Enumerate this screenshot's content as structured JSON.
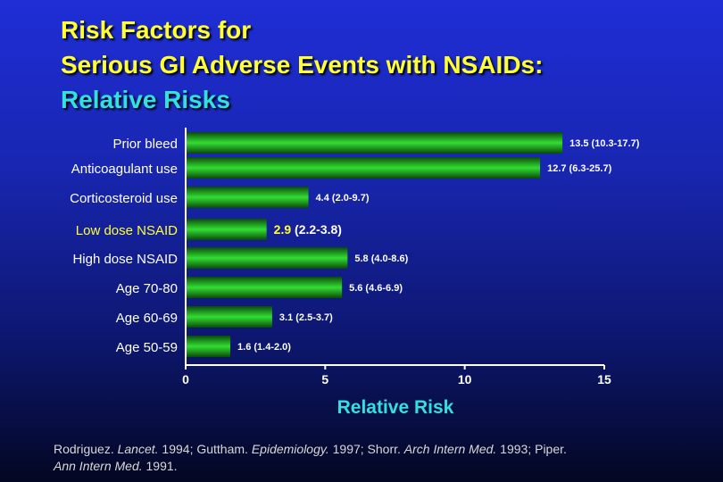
{
  "title": {
    "line1": "Risk Factors for",
    "line2": "Serious GI Adverse Events with NSAIDs:",
    "line3": "Relative Risks"
  },
  "source": {
    "s1": "Rodriguez. ",
    "j1": "Lancet.",
    "s2": " 1994; Guttham. ",
    "j2": "Epidemiology.",
    "s3": " 1997; Shorr. ",
    "j3": "Arch Intern Med.",
    "s4": " 1993; Piper.",
    "j4": "Ann Intern Med.",
    "s5": " 1991."
  },
  "colors": {
    "title": "#ffff33",
    "subtitle": "#33e0e0",
    "bar": "#22cc22",
    "highlight": "#ffff33",
    "axis": "#ffffff"
  },
  "chart_data": {
    "type": "bar",
    "orientation": "horizontal",
    "xlabel": "Relative Risk",
    "xlim": [
      0,
      15
    ],
    "xticks": [
      "0",
      "5",
      "10",
      "15"
    ],
    "categories": [
      "Prior bleed",
      "Anticoagulant use",
      "Corticosteroid use",
      "Low dose NSAID",
      "High dose NSAID",
      "Age 70-80",
      "Age 60-69",
      "Age 50-59"
    ],
    "values": [
      13.5,
      12.7,
      4.4,
      2.9,
      5.8,
      5.6,
      3.1,
      1.6
    ],
    "labels": [
      "13.5 (10.3-17.7)",
      "12.7 (6.3-25.7)",
      "4.4 (2.0-9.7)",
      "2.9 (2.2-3.8)",
      "5.8 (4.0-8.6)",
      "5.6 (4.6-6.9)",
      "3.1 (2.5-3.7)",
      "1.6 (1.4-2.0)"
    ],
    "highlighted_category": "Low dose NSAID"
  }
}
